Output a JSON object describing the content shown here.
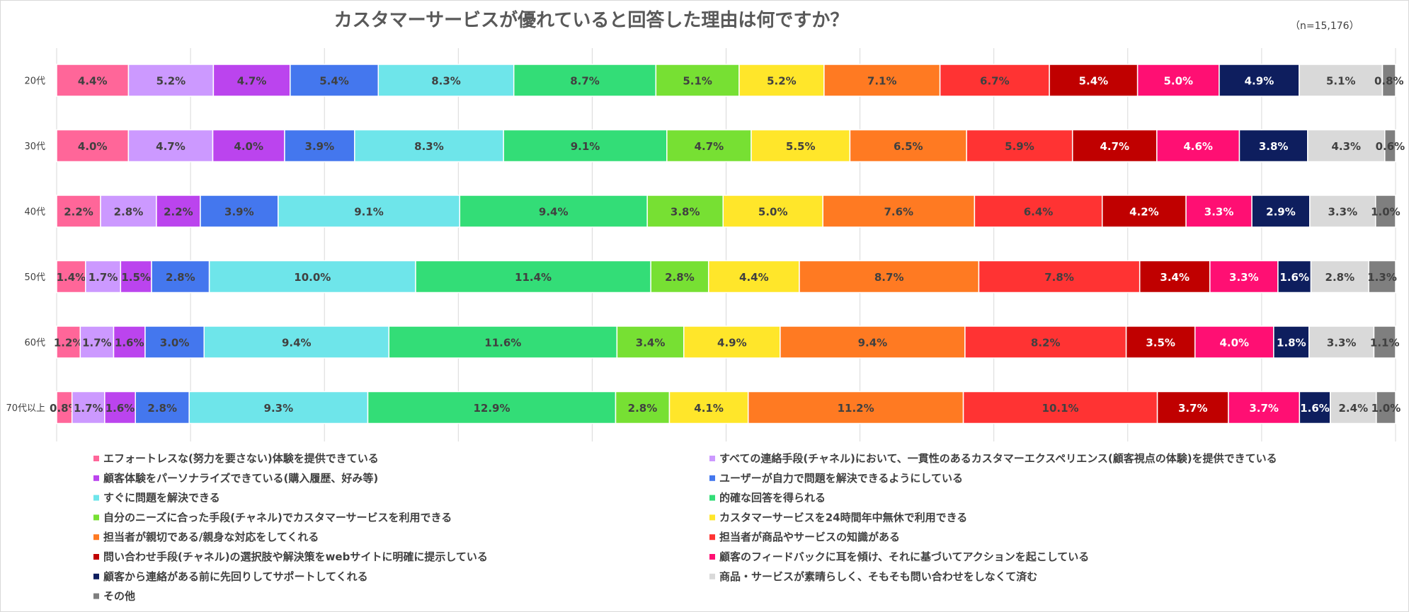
{
  "chart_data": {
    "type": "bar",
    "orientation": "horizontal",
    "stacked": true,
    "title": "カスタマーサービスが優れていると回答した理由は何ですか？",
    "note": "（n=15,176）",
    "categories": [
      "20代",
      "30代",
      "40代",
      "50代",
      "60代",
      "70代以上"
    ],
    "grid": true,
    "legend_position": "bottom",
    "series": [
      {
        "name": "エフォートレスな(努力を要さない)体験を提供できている",
        "color": "#ff6699",
        "values": [
          4.4,
          4.0,
          2.2,
          1.4,
          1.2,
          0.8
        ]
      },
      {
        "name": "すべての連絡手段(チャネル)において、一貫性のあるカスタマーエクスペリエンス(顧客視点の体験)を提供できている",
        "color": "#cc99ff",
        "values": [
          5.2,
          4.7,
          2.8,
          1.7,
          1.7,
          1.7
        ]
      },
      {
        "name": "顧客体験をパーソナライズできている(購入履歴、好み等)",
        "color": "#bb44ee",
        "values": [
          4.7,
          4.0,
          2.2,
          1.5,
          1.6,
          1.6
        ]
      },
      {
        "name": "ユーザーが自力で問題を解決できるようにしている",
        "color": "#4477ee",
        "values": [
          5.4,
          3.9,
          3.9,
          2.8,
          3.0,
          2.8
        ]
      },
      {
        "name": "すぐに問題を解決できる",
        "color": "#6ee5ea",
        "values": [
          8.3,
          8.3,
          9.1,
          10.0,
          9.4,
          9.3
        ]
      },
      {
        "name": "的確な回答を得られる",
        "color": "#33dd77",
        "values": [
          8.7,
          9.1,
          9.4,
          11.4,
          11.6,
          12.9
        ]
      },
      {
        "name": "自分のニーズに合った手段(チャネル)でカスタマーサービスを利用できる",
        "color": "#77e033",
        "values": [
          5.1,
          4.7,
          3.8,
          2.8,
          3.4,
          2.8
        ]
      },
      {
        "name": "カスタマーサービスを24時間年中無休で利用できる",
        "color": "#ffe62a",
        "values": [
          5.2,
          5.5,
          5.0,
          4.4,
          4.9,
          4.1
        ]
      },
      {
        "name": "担当者が親切である/親身な対応をしてくれる",
        "color": "#ff7a22",
        "values": [
          7.1,
          6.5,
          7.6,
          8.7,
          9.4,
          11.2
        ]
      },
      {
        "name": "担当者が商品やサービスの知識がある",
        "color": "#ff3333",
        "values": [
          6.7,
          5.9,
          6.4,
          7.8,
          8.2,
          10.1
        ]
      },
      {
        "name": "問い合わせ手段(チャネル)の選択肢や解決策をwebサイトに明確に提示している",
        "color": "#c00000",
        "values": [
          5.4,
          4.7,
          4.2,
          3.4,
          3.5,
          3.7
        ]
      },
      {
        "name": "顧客のフィードバックに耳を傾け、それに基づいてアクションを起こしている",
        "color": "#ff0f73",
        "values": [
          5.0,
          4.6,
          3.3,
          3.3,
          4.0,
          3.7
        ]
      },
      {
        "name": "顧客から連絡がある前に先回りしてサポートしてくれる",
        "color": "#0e1e5e",
        "values": [
          4.9,
          3.8,
          2.9,
          1.6,
          1.8,
          1.6
        ]
      },
      {
        "name": "商品・サービスが素晴らしく、そもそも問い合わせをしなくて済む",
        "color": "#d9d9d9",
        "values": [
          5.1,
          4.3,
          3.3,
          2.8,
          3.3,
          2.4
        ]
      },
      {
        "name": "その他",
        "color": "#7f7f7f",
        "values": [
          0.8,
          0.6,
          1.0,
          1.3,
          1.1,
          1.0
        ]
      }
    ]
  }
}
